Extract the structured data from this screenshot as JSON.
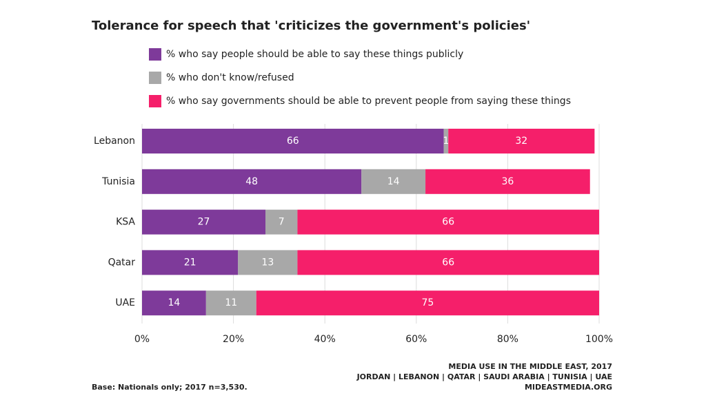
{
  "chart_data": {
    "type": "bar",
    "orientation": "horizontal",
    "stacked": true,
    "title": "Tolerance for speech that 'criticizes the government's policies'",
    "categories": [
      "Lebanon",
      "Tunisia",
      "KSA",
      "Qatar",
      "UAE"
    ],
    "series": [
      {
        "name": "% who say people should be able to say these things publicly",
        "color": "#7e3a9a",
        "values": [
          66,
          48,
          27,
          21,
          14
        ]
      },
      {
        "name": "% who don't know/refused",
        "color": "#a8a8a8",
        "values": [
          1,
          14,
          7,
          13,
          11
        ]
      },
      {
        "name": "% who say governments should be able to prevent people from saying these things",
        "color": "#f51f6a",
        "values": [
          32,
          36,
          66,
          66,
          75
        ]
      }
    ],
    "xlim": [
      0,
      100
    ],
    "xticks": [
      {
        "value": 0,
        "label": "0%"
      },
      {
        "value": 20,
        "label": "20%"
      },
      {
        "value": 40,
        "label": "40%"
      },
      {
        "value": 60,
        "label": "60%"
      },
      {
        "value": 80,
        "label": "80%"
      },
      {
        "value": 100,
        "label": "100%"
      }
    ],
    "grid": true,
    "legend": "top",
    "source": [
      "MEDIA USE IN THE MIDDLE EAST, 2017",
      "JORDAN | LEBANON | QATAR | SAUDI ARABIA | TUNISIA | UAE",
      "MIDEASTMEDIA.ORG"
    ],
    "note": "Base: Nationals only; 2017 n=3,530."
  }
}
